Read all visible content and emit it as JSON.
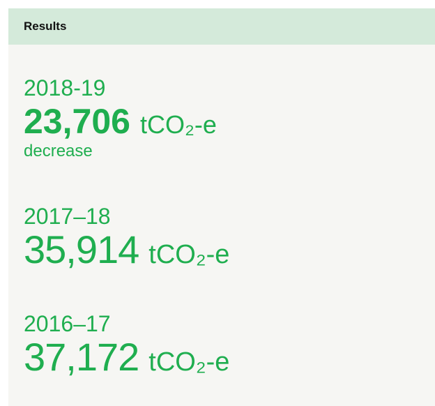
{
  "header": {
    "title": "Results"
  },
  "items": [
    {
      "year": "2018-19",
      "value": "23,706",
      "unit": "tCO₂-e",
      "note": "decrease"
    },
    {
      "year": "2017–18",
      "value": "35,914",
      "unit": "tCO₂-e"
    },
    {
      "year": "2016–17",
      "value": "37,172",
      "unit": "tCO₂-e"
    }
  ]
}
